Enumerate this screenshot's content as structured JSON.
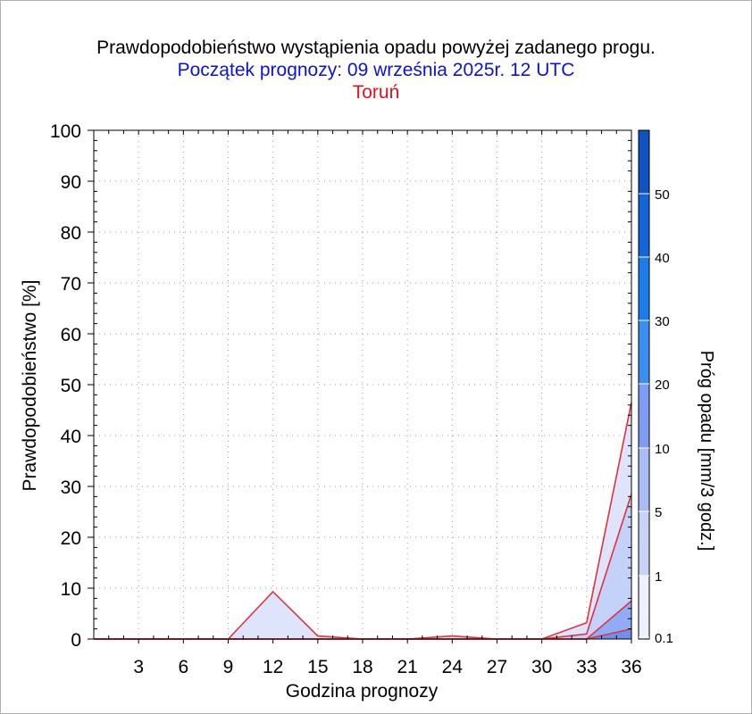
{
  "titles": {
    "main": "Prawdopodobieństwo wystąpienia opadu powyżej zadanego progu.",
    "start": "Początek prognozy: 09 września 2025r. 12 UTC",
    "location": "Toruń"
  },
  "colors": {
    "title_main": "#000000",
    "title_start": "#0a14d2",
    "title_location": "#e0101e",
    "series_line": "#e0323c",
    "grid": "#9a9a9a"
  },
  "chart_data": {
    "type": "area",
    "ylabel": "Prawdopodobieństwo [%]",
    "xlabel": "Godzina prognozy",
    "x": [
      0,
      3,
      6,
      9,
      12,
      15,
      18,
      21,
      24,
      27,
      30,
      33,
      36
    ],
    "x_ticks": [
      3,
      6,
      9,
      12,
      15,
      18,
      21,
      24,
      27,
      30,
      33,
      36
    ],
    "xlim": [
      0,
      36
    ],
    "ylim": [
      0,
      100
    ],
    "y_ticks": [
      0,
      10,
      20,
      30,
      40,
      50,
      60,
      70,
      80,
      90,
      100
    ],
    "grid": true,
    "series": [
      {
        "threshold": 0.1,
        "color": "#dde4fb",
        "values": [
          0,
          0,
          0,
          0,
          9.3,
          0.6,
          0,
          0,
          0.6,
          0,
          0,
          3.2,
          46.5
        ]
      },
      {
        "threshold": 1,
        "color": "#c4d2fa",
        "values": [
          0,
          0,
          0,
          0,
          0,
          0,
          0,
          0,
          0,
          0,
          0,
          1.0,
          28.5
        ]
      },
      {
        "threshold": 5,
        "color": "#8fadf5",
        "values": [
          0,
          0,
          0,
          0,
          0,
          0,
          0,
          0,
          0,
          0,
          0,
          0,
          7.5
        ]
      },
      {
        "threshold": 10,
        "color": "#6f8ff0",
        "values": [
          0,
          0,
          0,
          0,
          0,
          0,
          0,
          0,
          0,
          0,
          0,
          0,
          2.0
        ]
      }
    ],
    "colorbar": {
      "label": "Próg opadu [mm/3 godz.]",
      "tick_labels": [
        "0.1",
        "1",
        "5",
        "10",
        "20",
        "30",
        "40",
        "50"
      ],
      "colors": [
        "#edf0fd",
        "#c8d3f8",
        "#aabcf6",
        "#7e9df2",
        "#3a8ff0",
        "#1c7cec",
        "#1565d8",
        "#0f52c2",
        "#0a3fa6"
      ]
    }
  }
}
